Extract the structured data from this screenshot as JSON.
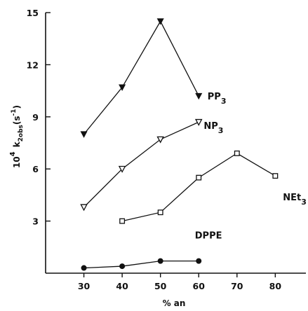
{
  "chart_data": {
    "type": "line",
    "xlabel": "% an",
    "ylabel_main": "k",
    "ylabel_prefix": "10",
    "ylabel_prefix_sup": "4",
    "ylabel_sub": "2obs",
    "ylabel_unit_open": "(s",
    "ylabel_unit_sup": "-1",
    "ylabel_unit_close": ")",
    "xlim": [
      20,
      88
    ],
    "ylim": [
      0,
      15
    ],
    "x_ticks": [
      30,
      40,
      50,
      60,
      70,
      80
    ],
    "x_tick_labels": [
      "30",
      "40",
      "50",
      "60",
      "70",
      "80"
    ],
    "y_ticks": [
      3,
      6,
      9,
      12,
      15
    ],
    "y_tick_labels": [
      "3",
      "6",
      "9",
      "12",
      "15"
    ],
    "grid": false,
    "series": [
      {
        "name_main": "PP",
        "name_sub": "3",
        "marker": "triangle-down",
        "x": [
          30,
          40,
          50,
          60
        ],
        "y": [
          8.0,
          10.7,
          14.5,
          10.2
        ]
      },
      {
        "name_main": "NP",
        "name_sub": "3",
        "marker": "triangle-down-open",
        "x": [
          30,
          40,
          50,
          60
        ],
        "y": [
          3.8,
          6.0,
          7.7,
          8.7
        ]
      },
      {
        "name_main": "NEt",
        "name_sub": "3",
        "marker": "square-open",
        "x": [
          40,
          50,
          60,
          70,
          80
        ],
        "y": [
          3.0,
          3.5,
          5.5,
          6.9,
          5.6
        ]
      },
      {
        "name_main": "DPPE",
        "name_sub": "",
        "marker": "circle",
        "x": [
          30,
          40,
          50,
          60
        ],
        "y": [
          0.3,
          0.4,
          0.7,
          0.7
        ]
      }
    ]
  }
}
